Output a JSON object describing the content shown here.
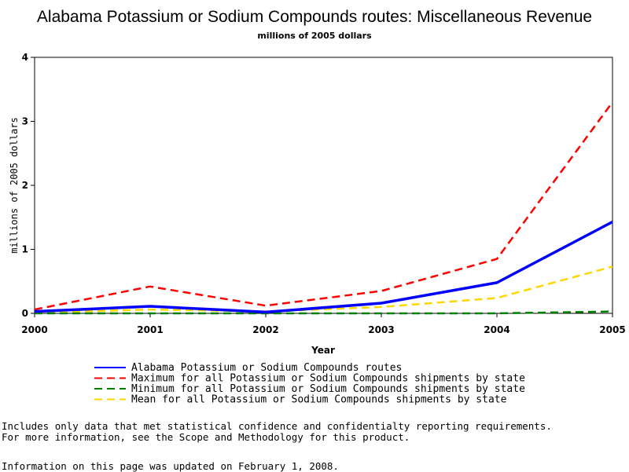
{
  "chart_data": {
    "type": "line",
    "title": "Alabama Potassium or Sodium Compounds routes: Miscellaneous Revenue",
    "subtitle": "millions of 2005 dollars",
    "xlabel": "Year",
    "ylabel": "millions of 2005 dollars",
    "x": [
      "2000",
      "2001",
      "2002",
      "2003",
      "2004",
      "2005"
    ],
    "ylim": [
      0,
      4
    ],
    "yticks": [
      "0",
      "1",
      "2",
      "3",
      "4"
    ],
    "grid": false,
    "legend_position": "bottom",
    "series": [
      {
        "name": "Alabama Potassium or Sodium Compounds routes",
        "values": [
          0.03,
          0.11,
          0.02,
          0.16,
          0.48,
          1.43
        ],
        "color": "#0000ff",
        "style": "solid"
      },
      {
        "name": "Maximum for all Potassium or Sodium Compounds shipments by state",
        "values": [
          0.06,
          0.42,
          0.12,
          0.35,
          0.85,
          3.3
        ],
        "color": "#ff0000",
        "style": "dashed"
      },
      {
        "name": "Minimum for all Potassium or Sodium Compounds shipments by state",
        "values": [
          0.0,
          0.0,
          0.0,
          0.0,
          0.0,
          0.03
        ],
        "color": "#008000",
        "style": "dashed"
      },
      {
        "name": "Mean for all Potassium or Sodium Compounds shipments by state",
        "values": [
          0.01,
          0.06,
          0.03,
          0.1,
          0.24,
          0.73
        ],
        "color": "#ffd700",
        "style": "dashed"
      }
    ]
  },
  "notes": {
    "line1": "Includes only data that met statistical confidence and confidentialty reporting requirements.",
    "line2": "For more information, see the Scope and Methodology for this product.",
    "updated": "Information on this page was updated on February 1, 2008."
  }
}
